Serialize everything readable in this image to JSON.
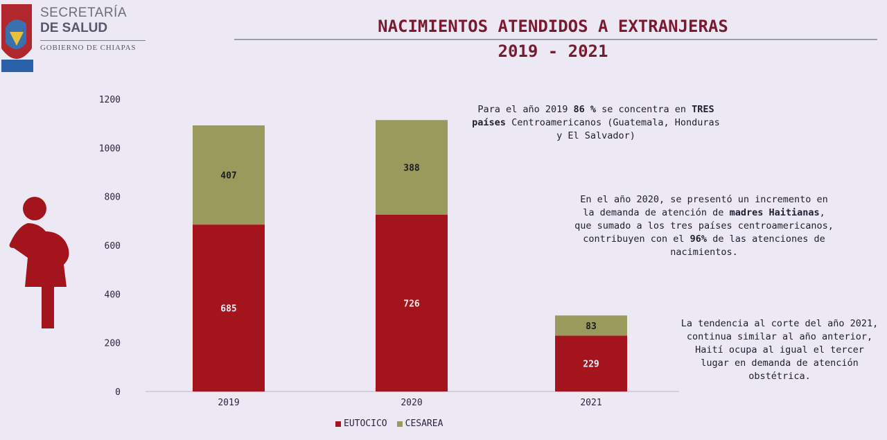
{
  "brand": {
    "line1": "SECRETARÍA",
    "line2": "DE SALUD",
    "line3": "GOBIERNO DE CHIAPAS"
  },
  "title": {
    "line1": "NACIMIENTOS ATENDIDOS A EXTRANJERAS",
    "line2": "2019 - 2021"
  },
  "notes": {
    "n1_a": "Para el año 2019 ",
    "n1_b": "86 %",
    "n1_c": " se concentra en ",
    "n1_d": "TRES países",
    "n1_e": " Centroamericanos (Guatemala, Honduras y El Salvador)",
    "n2_a": "En el año 2020, se presentó un incremento en la demanda de atención de ",
    "n2_b": "madres Haitianas",
    "n2_c": ", que sumado a los tres países centroamericanos, contribuyen con el ",
    "n2_d": "96%",
    "n2_e": " de las atenciones de nacimientos.",
    "n3": "La tendencia al corte del año 2021, continua similar al año anterior, Haití ocupa al igual el tercer lugar en demanda de atención obstétrica."
  },
  "colors": {
    "eutocico": "#a4141d",
    "cesarea": "#9a9a5c",
    "axis_text": "#2a2440"
  },
  "chart_data": {
    "type": "bar",
    "stacked": true,
    "categories": [
      "2019",
      "2020",
      "2021"
    ],
    "series": [
      {
        "name": "EUTOCICO",
        "values": [
          685,
          726,
          229
        ]
      },
      {
        "name": "CESAREA",
        "values": [
          407,
          388,
          83
        ]
      }
    ],
    "ylim": [
      0,
      1200
    ],
    "yticks": [
      0,
      200,
      400,
      600,
      800,
      1000,
      1200
    ],
    "legend": "bottom",
    "grid": false
  }
}
